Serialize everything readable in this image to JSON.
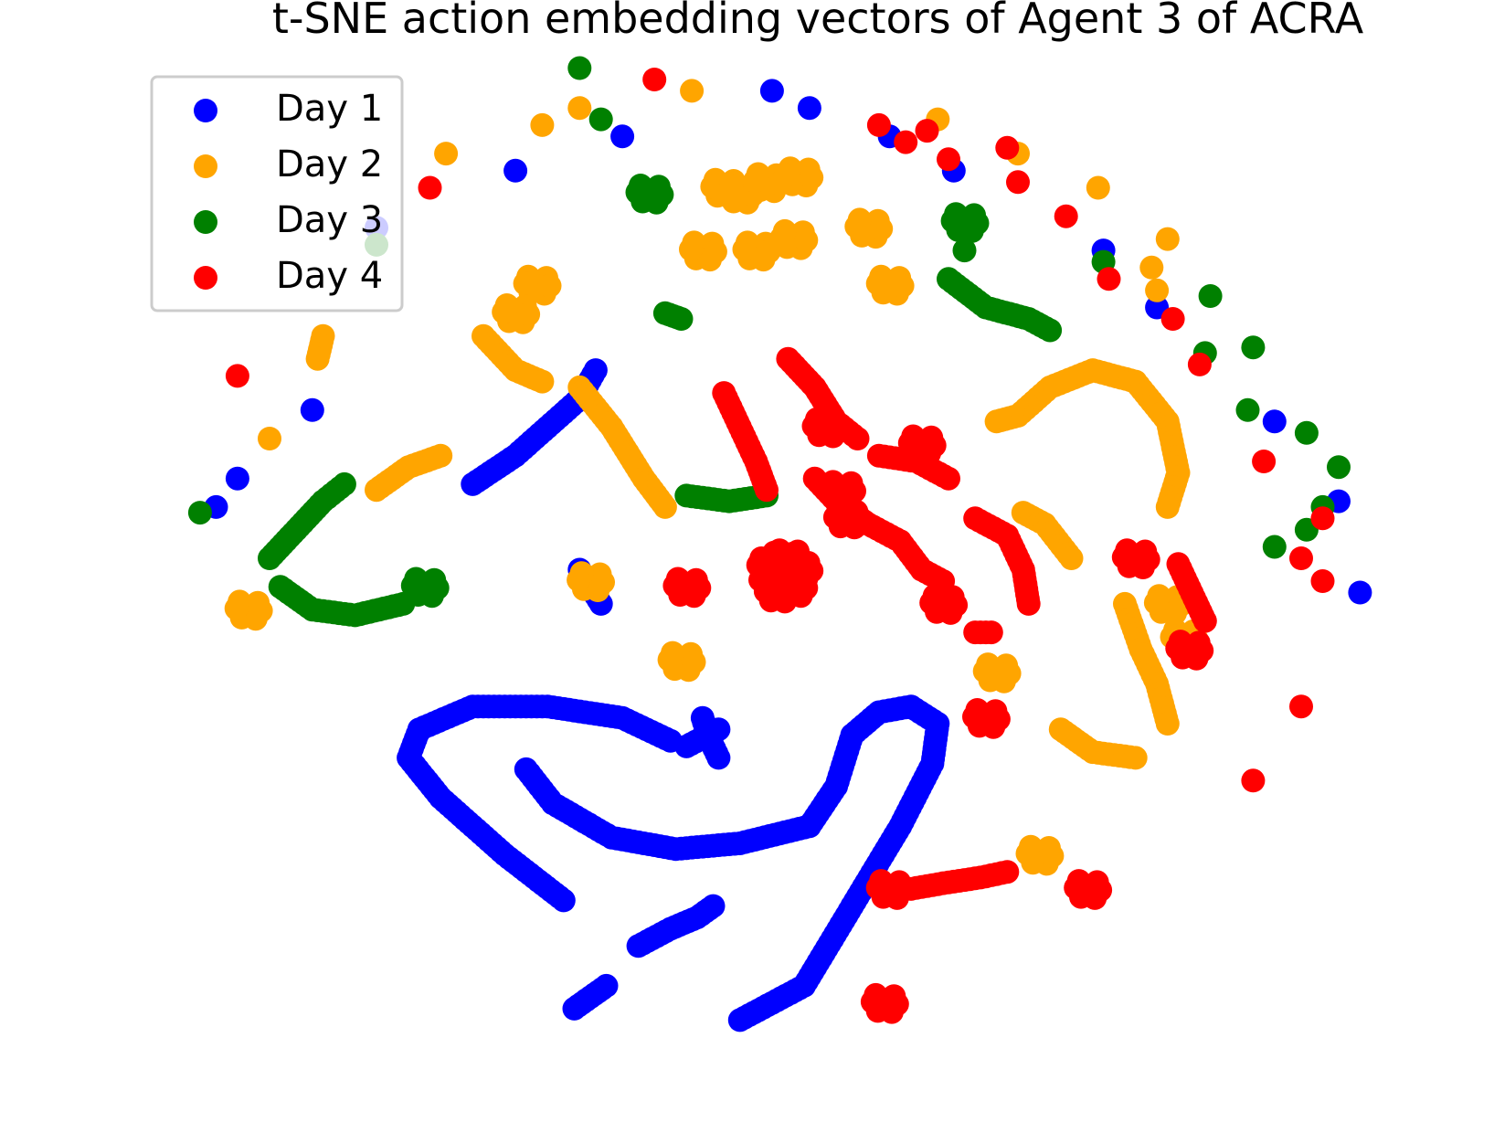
{
  "chart_data": {
    "type": "scatter",
    "title": "t-SNE action embedding vectors of Agent 3 of ACRA",
    "xlabel": "",
    "ylabel": "",
    "axes_visible": false,
    "grid": false,
    "legend_placement": "top-left",
    "xlim": [
      -60,
      60
    ],
    "ylim": [
      -45,
      45
    ],
    "series": [
      {
        "name": "Day 1",
        "color": "#0000ff",
        "arc_points": [
          [
            -40.0,
            30.0
          ],
          [
            -27.0,
            35.0
          ],
          [
            -17.0,
            38.0
          ],
          [
            -3.0,
            42.0
          ],
          [
            0.5,
            40.5
          ],
          [
            8.0,
            38.0
          ],
          [
            14.0,
            35.0
          ],
          [
            28.0,
            28.0
          ],
          [
            33.0,
            23.0
          ],
          [
            44.0,
            13.0
          ],
          [
            50.0,
            6.0
          ],
          [
            52.0,
            -2.0
          ],
          [
            -46.0,
            14.0
          ],
          [
            -53.0,
            8.0
          ],
          [
            -55.0,
            5.5
          ]
        ],
        "strokes": [
          {
            "closed": false,
            "points": [
              [
                -22.5,
                -29.0
              ],
              [
                -28.0,
                -25.0
              ],
              [
                -34.0,
                -20.0
              ],
              [
                -37.0,
                -16.5
              ],
              [
                -36.0,
                -14.0
              ],
              [
                -31.0,
                -12.0
              ],
              [
                -24.0,
                -12.0
              ],
              [
                -17.0,
                -13.0
              ],
              [
                -12.5,
                -15.0
              ]
            ]
          },
          {
            "closed": false,
            "points": [
              [
                -26.0,
                -17.5
              ],
              [
                -23.5,
                -20.5
              ],
              [
                -18.0,
                -23.5
              ],
              [
                -12.0,
                -24.5
              ],
              [
                -6.0,
                -24.0
              ],
              [
                0.5,
                -22.5
              ],
              [
                3.0,
                -19.0
              ],
              [
                4.5,
                -14.5
              ],
              [
                7.0,
                -12.5
              ],
              [
                10.0,
                -12.0
              ],
              [
                12.5,
                -13.5
              ],
              [
                12.0,
                -17.0
              ],
              [
                9.0,
                -22.5
              ],
              [
                4.5,
                -29.5
              ],
              [
                0.0,
                -36.5
              ],
              [
                -6.0,
                -39.5
              ]
            ]
          },
          {
            "closed": false,
            "points": [
              [
                -31.0,
                7.5
              ],
              [
                -27.0,
                10.0
              ],
              [
                -24.0,
                12.5
              ],
              [
                -21.0,
                15.0
              ],
              [
                -19.5,
                17.5
              ]
            ]
          },
          {
            "closed": false,
            "points": [
              [
                -15.5,
                -33.0
              ],
              [
                -12.5,
                -31.5
              ],
              [
                -10.0,
                -30.5
              ],
              [
                -8.5,
                -29.5
              ]
            ]
          },
          {
            "closed": false,
            "points": [
              [
                -9.5,
                -13.0
              ],
              [
                -9.0,
                -14.5
              ],
              [
                -8.0,
                -16.5
              ]
            ]
          },
          {
            "closed": false,
            "points": [
              [
                -11.0,
                -15.5
              ],
              [
                -8.0,
                -14.0
              ]
            ]
          },
          {
            "closed": false,
            "points": [
              [
                -21.5,
                -38.5
              ],
              [
                -20.0,
                -37.5
              ],
              [
                -18.5,
                -36.5
              ]
            ]
          },
          {
            "closed": false,
            "points": [
              [
                -21.0,
                0.0
              ],
              [
                -19.0,
                -3.0
              ]
            ]
          }
        ],
        "blobs": [
          [
            -2.0,
            -0.5
          ]
        ]
      },
      {
        "name": "Day 2",
        "color": "#ffa500",
        "arc_points": [
          [
            -50.0,
            11.5
          ],
          [
            -33.5,
            36.5
          ],
          [
            -24.5,
            39.0
          ],
          [
            -21.0,
            40.5
          ],
          [
            -10.5,
            42.0
          ],
          [
            12.5,
            39.5
          ],
          [
            20.0,
            36.5
          ],
          [
            27.5,
            33.5
          ],
          [
            34.0,
            29.0
          ],
          [
            32.5,
            26.5
          ],
          [
            33.0,
            24.5
          ]
        ],
        "strokes": [
          {
            "closed": false,
            "points": [
              [
                18.0,
                13.0
              ],
              [
                20.0,
                13.5
              ],
              [
                23.0,
                16.0
              ],
              [
                27.0,
                17.5
              ],
              [
                31.0,
                16.5
              ],
              [
                34.0,
                13.0
              ],
              [
                35.0,
                8.5
              ],
              [
                34.0,
                5.5
              ]
            ]
          },
          {
            "closed": false,
            "points": [
              [
                -30.0,
                20.5
              ],
              [
                -27.0,
                17.5
              ],
              [
                -24.5,
                16.5
              ]
            ]
          },
          {
            "closed": false,
            "points": [
              [
                -21.0,
                16.0
              ],
              [
                -18.0,
                12.5
              ],
              [
                -15.0,
                8.0
              ],
              [
                -13.0,
                5.5
              ]
            ]
          },
          {
            "closed": false,
            "points": [
              [
                -40.0,
                7.0
              ],
              [
                -37.0,
                9.0
              ],
              [
                -34.0,
                10.0
              ]
            ]
          },
          {
            "closed": false,
            "points": [
              [
                30.0,
                -3.0
              ],
              [
                31.5,
                -7.0
              ],
              [
                33.0,
                -10.0
              ],
              [
                34.0,
                -13.5
              ]
            ]
          },
          {
            "closed": false,
            "points": [
              [
                24.0,
                -14.0
              ],
              [
                27.0,
                -16.0
              ],
              [
                31.0,
                -16.5
              ]
            ]
          },
          {
            "closed": false,
            "points": [
              [
                20.5,
                5.0
              ],
              [
                22.5,
                4.0
              ],
              [
                25.0,
                1.0
              ]
            ]
          },
          {
            "closed": false,
            "points": [
              [
                -45.0,
                20.5
              ],
              [
                -45.5,
                18.5
              ]
            ]
          }
        ],
        "blobs": [
          [
            -52.0,
            -3.5
          ],
          [
            -20.0,
            -1.0
          ],
          [
            -11.5,
            -8.0
          ],
          [
            -7.5,
            33.5
          ],
          [
            -6.0,
            33.0
          ],
          [
            -3.5,
            34.0
          ],
          [
            -0.5,
            34.5
          ],
          [
            -9.5,
            28.0
          ],
          [
            -4.5,
            28.0
          ],
          [
            -1.0,
            29.0
          ],
          [
            6.0,
            30.0
          ],
          [
            8.0,
            25.0
          ],
          [
            -25.0,
            25.0
          ],
          [
            -27.0,
            22.5
          ],
          [
            18.0,
            -9.0
          ],
          [
            35.5,
            -6.0
          ],
          [
            34.0,
            -3.0
          ],
          [
            22.0,
            -25.0
          ],
          [
            -2.0,
            0.5
          ]
        ]
      },
      {
        "name": "Day 3",
        "color": "#008000",
        "arc_points": [
          [
            -56.5,
            5.0
          ],
          [
            -40.0,
            28.5
          ],
          [
            -19.0,
            39.5
          ],
          [
            -21.0,
            44.0
          ],
          [
            15.0,
            28.0
          ],
          [
            28.0,
            27.0
          ],
          [
            38.0,
            24.0
          ],
          [
            37.5,
            19.0
          ],
          [
            41.5,
            14.0
          ],
          [
            42.0,
            19.5
          ],
          [
            47.0,
            12.0
          ],
          [
            50.0,
            9.0
          ],
          [
            48.5,
            5.5
          ],
          [
            47.0,
            3.5
          ],
          [
            44.0,
            2.0
          ]
        ],
        "strokes": [
          {
            "closed": false,
            "points": [
              [
                -50.0,
                1.0
              ],
              [
                -47.5,
                3.5
              ],
              [
                -45.0,
                6.0
              ],
              [
                -43.0,
                7.5
              ]
            ]
          },
          {
            "closed": false,
            "points": [
              [
                -49.0,
                -1.5
              ],
              [
                -46.0,
                -3.5
              ],
              [
                -42.0,
                -4.0
              ],
              [
                -37.5,
                -3.0
              ]
            ]
          },
          {
            "closed": false,
            "points": [
              [
                -11.0,
                6.5
              ],
              [
                -7.0,
                6.0
              ],
              [
                -3.5,
                6.5
              ]
            ]
          },
          {
            "closed": false,
            "points": [
              [
                13.5,
                25.5
              ],
              [
                17.0,
                23.0
              ],
              [
                21.0,
                22.0
              ],
              [
                23.0,
                21.0
              ]
            ]
          },
          {
            "closed": false,
            "points": [
              [
                -13.0,
                22.5
              ],
              [
                -11.5,
                22.0
              ]
            ]
          }
        ],
        "blobs": [
          [
            -35.5,
            -1.5
          ],
          [
            -14.5,
            33.0
          ],
          [
            15.0,
            30.5
          ],
          [
            -2.0,
            -0.8
          ]
        ]
      },
      {
        "name": "Day 4",
        "color": "#ff0000",
        "arc_points": [
          [
            -53.0,
            17.0
          ],
          [
            -35.0,
            33.5
          ],
          [
            -14.0,
            43.0
          ],
          [
            7.0,
            39.0
          ],
          [
            9.5,
            37.5
          ],
          [
            11.5,
            38.5
          ],
          [
            13.5,
            36.0
          ],
          [
            19.0,
            37.0
          ],
          [
            20.0,
            34.0
          ],
          [
            24.5,
            31.0
          ],
          [
            28.5,
            25.5
          ],
          [
            34.5,
            22.0
          ],
          [
            37.0,
            18.0
          ],
          [
            43.0,
            9.5
          ],
          [
            48.5,
            4.5
          ],
          [
            46.5,
            1.0
          ],
          [
            48.5,
            -1.0
          ],
          [
            46.5,
            -12.0
          ],
          [
            42.0,
            -18.5
          ]
        ],
        "strokes": [
          {
            "closed": false,
            "points": [
              [
                -1.5,
                18.5
              ],
              [
                1.0,
                16.0
              ],
              [
                3.0,
                13.0
              ],
              [
                5.0,
                11.5
              ]
            ]
          },
          {
            "closed": false,
            "points": [
              [
                -7.5,
                15.5
              ],
              [
                -6.0,
                12.5
              ],
              [
                -4.5,
                9.5
              ],
              [
                -3.5,
                7.0
              ]
            ]
          },
          {
            "closed": false,
            "points": [
              [
                1.0,
                8.0
              ],
              [
                3.0,
                6.0
              ],
              [
                6.0,
                4.0
              ],
              [
                9.0,
                2.5
              ],
              [
                11.0,
                0.0
              ],
              [
                13.0,
                -1.0
              ]
            ]
          },
          {
            "closed": false,
            "points": [
              [
                7.0,
                10.0
              ],
              [
                10.5,
                9.5
              ],
              [
                13.5,
                8.0
              ]
            ]
          },
          {
            "closed": false,
            "points": [
              [
                16.0,
                4.5
              ],
              [
                19.0,
                3.0
              ],
              [
                20.5,
                0.0
              ],
              [
                21.0,
                -3.0
              ]
            ]
          },
          {
            "closed": false,
            "points": [
              [
                10.0,
                -28.0
              ],
              [
                13.0,
                -27.5
              ],
              [
                16.5,
                -27.0
              ],
              [
                19.0,
                -26.5
              ]
            ]
          },
          {
            "closed": false,
            "points": [
              [
                35.0,
                0.5
              ],
              [
                36.5,
                -2.5
              ],
              [
                37.5,
                -4.5
              ]
            ]
          },
          {
            "closed": false,
            "points": [
              [
                16.0,
                -5.5
              ],
              [
                17.5,
                -5.5
              ]
            ]
          }
        ],
        "blobs": [
          [
            3.5,
            7.0
          ],
          [
            4.0,
            4.5
          ],
          [
            -11.0,
            -1.5
          ],
          [
            11.0,
            11.0
          ],
          [
            2.0,
            12.5
          ],
          [
            13.0,
            -3.0
          ],
          [
            31.0,
            1.0
          ],
          [
            36.0,
            -7.0
          ],
          [
            17.0,
            -13.0
          ],
          [
            8.0,
            -28.0
          ],
          [
            26.5,
            -28.0
          ],
          [
            7.5,
            -38.0
          ],
          [
            -2.0,
            -0.5
          ],
          [
            -0.5,
            0.0
          ],
          [
            -3.0,
            -1.0
          ],
          [
            -1.5,
            1.0
          ],
          [
            -2.5,
            -2.0
          ],
          [
            -1.0,
            -1.5
          ],
          [
            -2.0,
            0.8
          ],
          [
            -3.2,
            0.3
          ]
        ]
      }
    ]
  }
}
